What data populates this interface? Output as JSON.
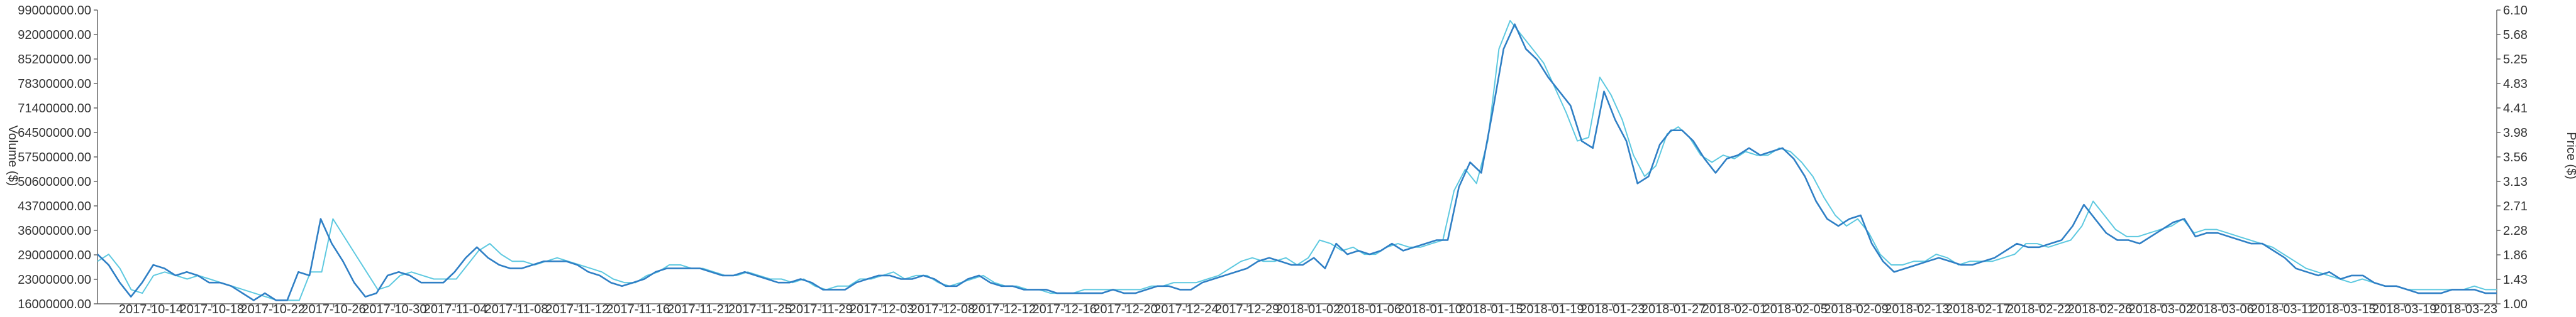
{
  "chart_data": {
    "type": "line",
    "title": "",
    "xlabel": "",
    "ylabel_left": "Volume ($)",
    "ylabel_right": "Price ($)",
    "grid": false,
    "legend": "none",
    "x_tick_labels": [
      "2017-10-14",
      "2017-10-18",
      "2017-10-22",
      "2017-10-26",
      "2017-10-30",
      "2017-11-04",
      "2017-11-08",
      "2017-11-12",
      "2017-11-16",
      "2017-11-21",
      "2017-11-25",
      "2017-11-29",
      "2017-12-03",
      "2017-12-08",
      "2017-12-12",
      "2017-12-16",
      "2017-12-20",
      "2017-12-24",
      "2017-12-29",
      "2018-01-02",
      "2018-01-06",
      "2018-01-10",
      "2018-01-15",
      "2018-01-19",
      "2018-01-23",
      "2018-01-27",
      "2018-02-01",
      "2018-02-05",
      "2018-02-09",
      "2018-02-13",
      "2018-02-17",
      "2018-02-22",
      "2018-02-26",
      "2018-03-02",
      "2018-03-06",
      "2018-03-11",
      "2018-03-15",
      "2018-03-19",
      "2018-03-23"
    ],
    "left_axis": {
      "range": [
        16000000,
        99000000
      ],
      "ticks": [
        "16000000.00",
        "23000000.00",
        "29000000.00",
        "36000000.00",
        "43700000.00",
        "50600000.00",
        "57500000.00",
        "64500000.00",
        "71400000.00",
        "78300000.00",
        "85200000.00",
        "92000000.00",
        "99000000.00"
      ]
    },
    "right_axis": {
      "range": [
        1.0,
        6.1
      ],
      "ticks": [
        "1.00",
        "1.43",
        "1.86",
        "2.28",
        "2.71",
        "3.13",
        "3.56",
        "3.98",
        "4.41",
        "4.83",
        "5.25",
        "5.68",
        "6.10"
      ]
    },
    "series": [
      {
        "axis": "left",
        "color": "#2f7fc5",
        "values": [
          30,
          27,
          22,
          18,
          22,
          27,
          26,
          24,
          25,
          24,
          22,
          22,
          21,
          19,
          17,
          19,
          17,
          17,
          25,
          24,
          40,
          33,
          28,
          22,
          18,
          19,
          24,
          25,
          24,
          22,
          22,
          22,
          25,
          29,
          32,
          29,
          27,
          26,
          26,
          27,
          28,
          28,
          28,
          27,
          25,
          24,
          22,
          21,
          22,
          23,
          25,
          26,
          26,
          26,
          26,
          25,
          24,
          24,
          25,
          24,
          23,
          22,
          22,
          23,
          22,
          20,
          20,
          20,
          22,
          23,
          24,
          24,
          23,
          23,
          24,
          23,
          21,
          21,
          23,
          24,
          22,
          21,
          21,
          20,
          20,
          20,
          19,
          19,
          19,
          19,
          19,
          20,
          19,
          19,
          20,
          21,
          21,
          20,
          20,
          22,
          23,
          24,
          25,
          26,
          28,
          29,
          28,
          27,
          27,
          29,
          26,
          33,
          30,
          31,
          30,
          31,
          33,
          31,
          32,
          33,
          34,
          34,
          49,
          56,
          53,
          70,
          88,
          95,
          88,
          85,
          80,
          76,
          72,
          62,
          60,
          76,
          68,
          62,
          50,
          52,
          61,
          65,
          65,
          62,
          57,
          53,
          57,
          58,
          60,
          58,
          59,
          60,
          57,
          52,
          45,
          40,
          38,
          40,
          41,
          33,
          28,
          25,
          26,
          27,
          28,
          29,
          28,
          27,
          27,
          28,
          29,
          31,
          33,
          32,
          32,
          33,
          34,
          38,
          44,
          40,
          36,
          34,
          34,
          33,
          35,
          37,
          39,
          40,
          35,
          36,
          36,
          35,
          34,
          33,
          33,
          31,
          29,
          26,
          25,
          24,
          25,
          23,
          24,
          24,
          22,
          21,
          21,
          20,
          19,
          19,
          19,
          20,
          20,
          20,
          19,
          19
        ]
      },
      {
        "axis": "left",
        "color": "#5ec9e0",
        "values": [
          28,
          30,
          26,
          20,
          19,
          24,
          25,
          24,
          23,
          24,
          23,
          22,
          21,
          20,
          19,
          18,
          17,
          17,
          17,
          25,
          25,
          40,
          35,
          30,
          25,
          20,
          21,
          24,
          25,
          24,
          23,
          23,
          23,
          27,
          31,
          33,
          30,
          28,
          28,
          27,
          28,
          29,
          28,
          27,
          26,
          25,
          23,
          22,
          22,
          24,
          25,
          27,
          27,
          26,
          26,
          25,
          24,
          24,
          25,
          24,
          23,
          23,
          22,
          23,
          21,
          20,
          21,
          21,
          23,
          23,
          24,
          25,
          23,
          24,
          24,
          22,
          21,
          22,
          23,
          24,
          22,
          21,
          21,
          20,
          20,
          19,
          19,
          19,
          20,
          20,
          20,
          20,
          20,
          20,
          21,
          21,
          22,
          22,
          22,
          23,
          24,
          26,
          28,
          29,
          28,
          28,
          29,
          27,
          29,
          34,
          33,
          31,
          32,
          30,
          30,
          32,
          33,
          32,
          32,
          33,
          34,
          48,
          54,
          50,
          62,
          88,
          96,
          92,
          88,
          84,
          77,
          70,
          62,
          63,
          80,
          75,
          68,
          58,
          52,
          55,
          64,
          66,
          63,
          58,
          56,
          58,
          57,
          59,
          58,
          58,
          60,
          59,
          56,
          52,
          46,
          41,
          38,
          40,
          36,
          30,
          27,
          27,
          28,
          28,
          30,
          29,
          27,
          28,
          28,
          28,
          29,
          30,
          33,
          33,
          32,
          33,
          34,
          38,
          45,
          41,
          37,
          35,
          35,
          36,
          37,
          38,
          40,
          36,
          37,
          37,
          36,
          35,
          34,
          33,
          32,
          30,
          28,
          26,
          25,
          24,
          23,
          22,
          23,
          22,
          21,
          21,
          20,
          20,
          20,
          20,
          20,
          20,
          21,
          20,
          20
        ]
      }
    ]
  }
}
